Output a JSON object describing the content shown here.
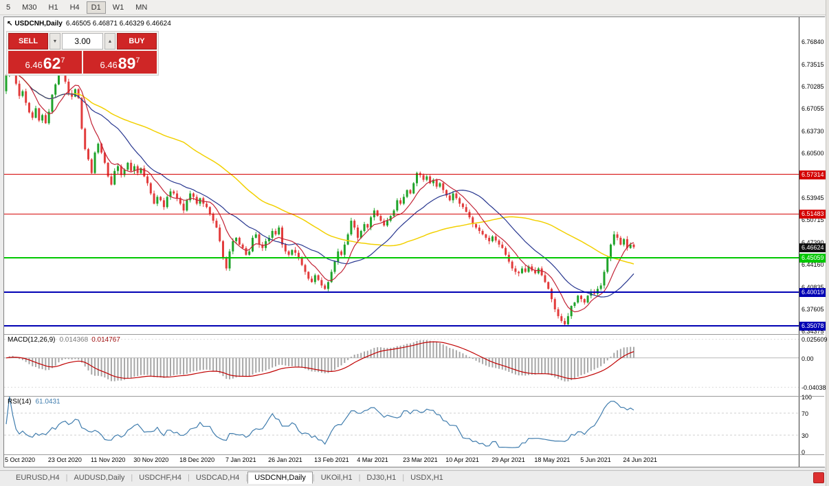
{
  "icons": {
    "cursor": "↖",
    "lot_down": "▼",
    "lot_up": "▲",
    "tab_separator": "|"
  },
  "toolbar": {
    "timeframes": [
      {
        "label": "5",
        "active": false
      },
      {
        "label": "M30",
        "active": false
      },
      {
        "label": "H1",
        "active": false
      },
      {
        "label": "H4",
        "active": false
      },
      {
        "label": "D1",
        "active": true
      },
      {
        "label": "W1",
        "active": false
      },
      {
        "label": "MN",
        "active": false
      }
    ]
  },
  "chart_header": {
    "symbol": "USDCNH,Daily",
    "ohlc": "6.46505 6.46871 6.46329 6.46624"
  },
  "trade_panel": {
    "sell_label": "SELL",
    "buy_label": "BUY",
    "lot_value": "3.00",
    "bid": {
      "prefix": "6.46",
      "main": "62",
      "sup": "7"
    },
    "ask": {
      "prefix": "6.46",
      "main": "89",
      "sup": "7"
    }
  },
  "price_axis": {
    "labels": [
      "6.76840",
      "6.73515",
      "6.70285",
      "6.67055",
      "6.63730",
      "6.60500",
      "6.53945",
      "6.50715",
      "6.47390",
      "6.44160",
      "6.40835",
      "6.37605",
      "6.34375"
    ]
  },
  "levels": [
    {
      "label": "6.57314",
      "price": 6.57314,
      "color": "#d40000",
      "width": 1
    },
    {
      "label": "6.51483",
      "price": 6.51483,
      "color": "#d40000",
      "width": 1
    },
    {
      "label": "6.45059",
      "price": 6.45059,
      "color": "#00c800",
      "width": 2
    },
    {
      "label": "6.40019",
      "price": 6.40019,
      "color": "#0000b4",
      "width": 2
    },
    {
      "label": "6.35078",
      "price": 6.35078,
      "color": "#0000b4",
      "width": 2
    }
  ],
  "current_price": {
    "label": "6.46624",
    "price": 6.46624,
    "color": "#111111"
  },
  "macd_panel": {
    "title": "MACD(12,26,9)",
    "value1": "0.014368",
    "value2": "0.014767",
    "axis_labels": [
      "0.025609",
      "0.00",
      "-0.04038"
    ]
  },
  "rsi_panel": {
    "title": "RSI(14)",
    "value": "61.0431",
    "axis_labels": [
      "100",
      "70",
      "30",
      "0"
    ]
  },
  "date_axis": [
    {
      "label": "5 Oct 2020",
      "i": 0
    },
    {
      "label": "23 Oct 2020",
      "i": 14
    },
    {
      "label": "11 Nov 2020",
      "i": 27
    },
    {
      "label": "30 Nov 2020",
      "i": 40
    },
    {
      "label": "18 Dec 2020",
      "i": 54
    },
    {
      "label": "7 Jan 2021",
      "i": 68
    },
    {
      "label": "26 Jan 2021",
      "i": 81
    },
    {
      "label": "13 Feb 2021",
      "i": 95
    },
    {
      "label": "4 Mar 2021",
      "i": 108
    },
    {
      "label": "23 Mar 2021",
      "i": 122
    },
    {
      "label": "10 Apr 2021",
      "i": 135
    },
    {
      "label": "29 Apr 2021",
      "i": 149
    },
    {
      "label": "18 May 2021",
      "i": 162
    },
    {
      "label": "5 Jun 2021",
      "i": 176
    },
    {
      "label": "24 Jun 2021",
      "i": 189
    }
  ],
  "tabs": [
    {
      "label": "EURUSD,H4",
      "active": false
    },
    {
      "label": "AUDUSD,Daily",
      "active": false
    },
    {
      "label": "USDCHF,H4",
      "active": false
    },
    {
      "label": "USDCAD,H4",
      "active": false
    },
    {
      "label": "USDCNH,Daily",
      "active": true
    },
    {
      "label": "UKOil,H1",
      "active": false
    },
    {
      "label": "DJ30,H1",
      "active": false
    },
    {
      "label": "USDX,H1",
      "active": false
    }
  ],
  "chart_data": {
    "type": "candlestick",
    "symbol": "USDCNH",
    "timeframe": "Daily",
    "price_range": [
      6.3387,
      6.8036
    ],
    "macd_range": [
      -0.0523,
      0.0317
    ],
    "rsi_range": [
      0,
      100
    ],
    "up_color": "#1fa32a",
    "down_color": "#e23b3b",
    "ma_lines": [
      {
        "name": "fast",
        "period": 8,
        "color": "#c22336"
      },
      {
        "name": "mid",
        "period": 21,
        "color": "#27368f"
      },
      {
        "name": "slow",
        "period": 55,
        "color": "#f2d000"
      }
    ],
    "macd_hist_color": "#a6a6a6",
    "macd_signal_color": "#c00000",
    "rsi_color": "#3f7cad",
    "closes": [
      6.718,
      6.745,
      6.731,
      6.706,
      6.688,
      6.695,
      6.678,
      6.664,
      6.656,
      6.67,
      6.652,
      6.66,
      6.648,
      6.665,
      6.69,
      6.705,
      6.728,
      6.721,
      6.709,
      6.692,
      6.687,
      6.698,
      6.685,
      6.64,
      6.61,
      6.595,
      6.575,
      6.605,
      6.618,
      6.605,
      6.59,
      6.57,
      6.558,
      6.578,
      6.585,
      6.572,
      6.58,
      6.59,
      6.578,
      6.585,
      6.575,
      6.582,
      6.57,
      6.56,
      6.545,
      6.53,
      6.54,
      6.535,
      6.525,
      6.54,
      6.548,
      6.545,
      6.538,
      6.53,
      6.52,
      6.535,
      6.545,
      6.54,
      6.53,
      6.538,
      6.53,
      6.525,
      6.515,
      6.505,
      6.495,
      6.475,
      6.45,
      6.435,
      6.46,
      6.475,
      6.48,
      6.47,
      6.465,
      6.455,
      6.46,
      6.48,
      6.485,
      6.47,
      6.465,
      6.475,
      6.48,
      6.49,
      6.485,
      6.495,
      6.47,
      6.46,
      6.455,
      6.462,
      6.458,
      6.45,
      6.44,
      6.43,
      6.42,
      6.415,
      6.425,
      6.418,
      6.41,
      6.405,
      6.415,
      6.43,
      6.445,
      6.46,
      6.455,
      6.47,
      6.485,
      6.505,
      6.495,
      6.48,
      6.49,
      6.5,
      6.495,
      6.51,
      6.52,
      6.512,
      6.505,
      6.498,
      6.505,
      6.512,
      6.52,
      6.535,
      6.53,
      6.54,
      6.55,
      6.545,
      6.56,
      6.575,
      6.572,
      6.565,
      6.57,
      6.56,
      6.565,
      6.555,
      6.56,
      6.55,
      6.542,
      6.535,
      6.545,
      6.538,
      6.53,
      6.525,
      6.518,
      6.51,
      6.5,
      6.495,
      6.49,
      6.485,
      6.48,
      6.475,
      6.482,
      6.476,
      6.47,
      6.465,
      6.455,
      6.445,
      6.435,
      6.43,
      6.428,
      6.435,
      6.43,
      6.438,
      6.432,
      6.428,
      6.435,
      6.425,
      6.415,
      6.405,
      6.39,
      6.375,
      6.365,
      6.358,
      6.353,
      6.365,
      6.38,
      6.385,
      6.395,
      6.39,
      6.385,
      6.395,
      6.4,
      6.398,
      6.405,
      6.41,
      6.43,
      6.45,
      6.47,
      6.485,
      6.48,
      6.47,
      6.478,
      6.465,
      6.47,
      6.4662
    ]
  }
}
